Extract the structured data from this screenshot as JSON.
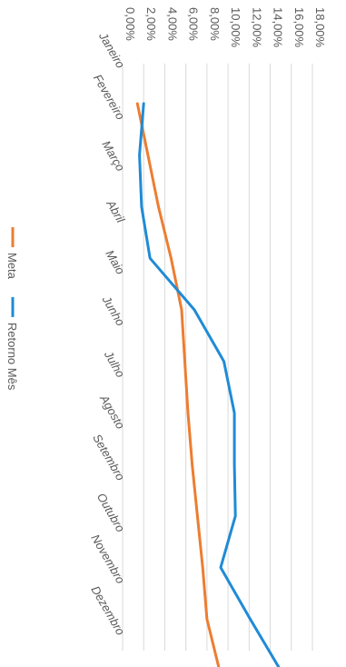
{
  "chart_data": {
    "type": "line",
    "categories": [
      "Janeiro",
      "Fevereiro",
      "Março",
      "Abril",
      "Maio",
      "Junho",
      "Julho",
      "Agosto",
      "Setembro",
      "Outubro",
      "Novembro",
      "Dezembro"
    ],
    "series": [
      {
        "name": "Meta",
        "color": "#ED7D31",
        "values": [
          1.4,
          2.4,
          3.4,
          4.6,
          5.6,
          5.9,
          6.2,
          6.6,
          7.1,
          7.6,
          8.0,
          9.2
        ]
      },
      {
        "name": "Retorno Mês",
        "color": "#1F8BD6",
        "values": [
          2.0,
          1.6,
          1.8,
          2.6,
          6.8,
          9.6,
          10.6,
          10.6,
          10.7,
          9.3,
          12.1,
          15.0
        ]
      }
    ],
    "value_ticks": [
      "0,00%",
      "2,00%",
      "4,00%",
      "6,00%",
      "8,00%",
      "10,00%",
      "12,00%",
      "14,00%",
      "16,00%",
      "18,00%"
    ],
    "ylim": [
      0,
      18
    ],
    "grid": true,
    "legend_position": "bottom",
    "orientation": "rotated-90-clockwise"
  }
}
